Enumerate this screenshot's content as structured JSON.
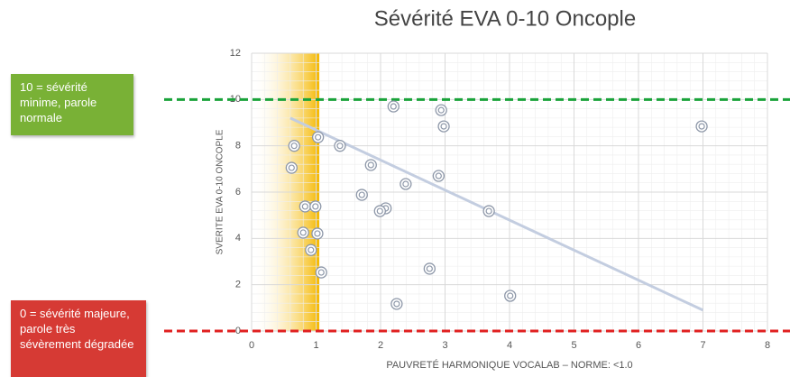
{
  "chart_data": {
    "type": "scatter",
    "title": "Sévérité EVA 0-10 Oncople",
    "x_label": "PAUVRETÉ HARMONIQUE VOCALAB – NORME: <1.0",
    "y_label": "SVERITE EVA 0-10 ONCOPLE",
    "x": [
      0.66,
      0.62,
      1.03,
      1.37,
      2.2,
      2.94,
      2.98,
      1.85,
      2.39,
      2.9,
      1.71,
      2.08,
      1.99,
      3.68,
      0.83,
      0.99,
      0.8,
      1.02,
      0.92,
      1.08,
      2.76,
      2.25,
      4.01,
      6.98
    ],
    "values": [
      8.0,
      7.05,
      8.37,
      8.0,
      9.7,
      9.54,
      8.84,
      7.17,
      6.35,
      6.7,
      5.88,
      5.3,
      5.18,
      5.18,
      5.38,
      5.38,
      4.25,
      4.21,
      3.5,
      2.53,
      2.69,
      1.17,
      1.52,
      8.84
    ],
    "color": "#8d97a8",
    "trendline": {
      "x": [
        0.6,
        7.0
      ],
      "values": [
        9.2,
        0.9
      ],
      "color": "#c3cde0"
    },
    "shaded_region": {
      "xmin": 0,
      "xmax": 1.05,
      "color": "#f5b800"
    },
    "reference_lines": [
      {
        "value": 10,
        "color": "#1aa33a",
        "label": "10 = sévérité minime, parole normale",
        "box_color": "#79b136"
      },
      {
        "value": 0,
        "color": "#e02020",
        "label": "0 = sévérité majeure, parole très sévèrement dégradée",
        "box_color": "#d63a34"
      }
    ],
    "xlim": [
      0,
      8
    ],
    "ylim": [
      0,
      12
    ],
    "xticks": [
      0,
      1,
      2,
      3,
      4,
      5,
      6,
      7,
      8
    ],
    "yticks": [
      0,
      2,
      4,
      6,
      8,
      10,
      12
    ],
    "grid": true,
    "minor_grid": true
  }
}
